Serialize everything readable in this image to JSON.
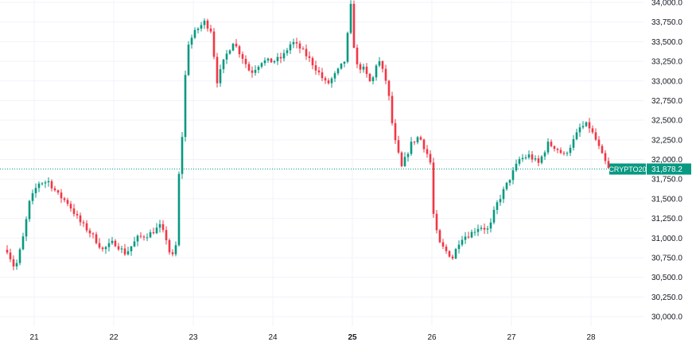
{
  "chart_data": {
    "type": "candlestick",
    "title": "",
    "symbol": "CRYPTO20",
    "last_price": 31878.2,
    "last_price_label": "31,878.2",
    "ylim": [
      29850,
      34000
    ],
    "y_ticks": [
      {
        "value": 30000,
        "label": "30,000.0"
      },
      {
        "value": 30250,
        "label": "30,250.0"
      },
      {
        "value": 30500,
        "label": "30,500.0"
      },
      {
        "value": 30750,
        "label": "30,750.0"
      },
      {
        "value": 31000,
        "label": "31,000.0"
      },
      {
        "value": 31250,
        "label": "31,250.0"
      },
      {
        "value": 31500,
        "label": "31,500.0"
      },
      {
        "value": 31750,
        "label": "31,750.0"
      },
      {
        "value": 32000,
        "label": "32,000.0"
      },
      {
        "value": 32250,
        "label": "32,250.0"
      },
      {
        "value": 32500,
        "label": "32,500.0"
      },
      {
        "value": 32750,
        "label": "32,750.0"
      },
      {
        "value": 33000,
        "label": "33,000.0"
      },
      {
        "value": 33250,
        "label": "33,250.0"
      },
      {
        "value": 33500,
        "label": "33,500.0"
      },
      {
        "value": 33750,
        "label": "33,750.0"
      },
      {
        "value": 34000,
        "label": "34,000.0"
      }
    ],
    "x_ticks": [
      {
        "day": 21,
        "label": "21",
        "bold": false
      },
      {
        "day": 22,
        "label": "22",
        "bold": false
      },
      {
        "day": 23,
        "label": "23",
        "bold": false
      },
      {
        "day": 24,
        "label": "24",
        "bold": false
      },
      {
        "day": 25,
        "label": "25",
        "bold": true
      },
      {
        "day": 26,
        "label": "26",
        "bold": false
      },
      {
        "day": 27,
        "label": "27",
        "bold": false
      },
      {
        "day": 28,
        "label": "28",
        "bold": false
      }
    ],
    "x_range": [
      20.65,
      28.9
    ],
    "up_color": "#089981",
    "down_color": "#f23645",
    "grid_color": "#f0f3fa",
    "anchors": [
      [
        20.66,
        30850
      ],
      [
        20.76,
        30600
      ],
      [
        20.85,
        30950
      ],
      [
        20.94,
        31450
      ],
      [
        21.05,
        31700
      ],
      [
        21.18,
        31720
      ],
      [
        21.3,
        31550
      ],
      [
        21.42,
        31450
      ],
      [
        21.58,
        31200
      ],
      [
        21.72,
        31050
      ],
      [
        21.86,
        30850
      ],
      [
        22.0,
        30950
      ],
      [
        22.15,
        30800
      ],
      [
        22.3,
        31000
      ],
      [
        22.45,
        31050
      ],
      [
        22.58,
        31150
      ],
      [
        22.68,
        30950
      ],
      [
        22.72,
        30700
      ],
      [
        22.78,
        30900
      ],
      [
        22.8,
        31550
      ],
      [
        22.86,
        32300
      ],
      [
        22.92,
        33450
      ],
      [
        23.04,
        33650
      ],
      [
        23.14,
        33750
      ],
      [
        23.22,
        33650
      ],
      [
        23.3,
        33000
      ],
      [
        23.4,
        33300
      ],
      [
        23.5,
        33500
      ],
      [
        23.62,
        33300
      ],
      [
        23.72,
        33100
      ],
      [
        23.86,
        33250
      ],
      [
        24.0,
        33250
      ],
      [
        24.12,
        33300
      ],
      [
        24.24,
        33500
      ],
      [
        24.36,
        33400
      ],
      [
        24.48,
        33250
      ],
      [
        24.58,
        33100
      ],
      [
        24.68,
        32950
      ],
      [
        24.8,
        33100
      ],
      [
        24.9,
        33250
      ],
      [
        24.96,
        33750
      ],
      [
        24.98,
        33950
      ],
      [
        25.04,
        33200
      ],
      [
        25.14,
        33150
      ],
      [
        25.24,
        32950
      ],
      [
        25.32,
        33300
      ],
      [
        25.44,
        32950
      ],
      [
        25.52,
        32300
      ],
      [
        25.62,
        31900
      ],
      [
        25.74,
        32200
      ],
      [
        25.84,
        32300
      ],
      [
        25.95,
        32050
      ],
      [
        26.0,
        31900
      ],
      [
        26.02,
        31300
      ],
      [
        26.08,
        30950
      ],
      [
        26.16,
        30850
      ],
      [
        26.26,
        30750
      ],
      [
        26.36,
        31000
      ],
      [
        26.48,
        31050
      ],
      [
        26.6,
        31150
      ],
      [
        26.72,
        31100
      ],
      [
        26.8,
        31400
      ],
      [
        26.9,
        31600
      ],
      [
        27.0,
        31800
      ],
      [
        27.1,
        32000
      ],
      [
        27.22,
        32050
      ],
      [
        27.34,
        31950
      ],
      [
        27.46,
        32200
      ],
      [
        27.56,
        32150
      ],
      [
        27.66,
        32050
      ],
      [
        27.76,
        32200
      ],
      [
        27.86,
        32400
      ],
      [
        27.96,
        32450
      ],
      [
        28.06,
        32250
      ],
      [
        28.14,
        32050
      ],
      [
        28.22,
        31878
      ]
    ]
  }
}
